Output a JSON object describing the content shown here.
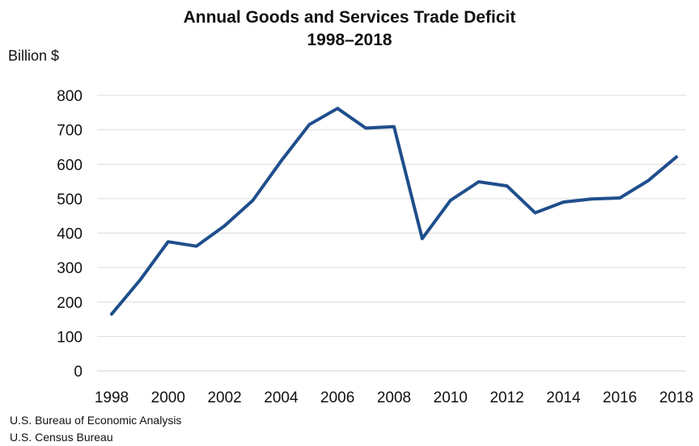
{
  "chart_data": {
    "type": "line",
    "title": "Annual Goods and Services Trade Deficit",
    "subtitle": "1998–2018",
    "ylabel": "Billion $",
    "xlabel": "",
    "ylim": [
      0,
      800
    ],
    "xlim": [
      1998,
      2018
    ],
    "y_ticks": [
      0,
      100,
      200,
      300,
      400,
      500,
      600,
      700,
      800
    ],
    "x_ticks": [
      1998,
      2000,
      2002,
      2004,
      2006,
      2008,
      2010,
      2012,
      2014,
      2016,
      2018
    ],
    "grid": "horizontal",
    "series": [
      {
        "color": "#1f4e8c",
        "x": [
          1998,
          1999,
          2000,
          2001,
          2002,
          2003,
          2004,
          2005,
          2006,
          2007,
          2008,
          2009,
          2010,
          2011,
          2012,
          2013,
          2014,
          2015,
          2016,
          2017,
          2018
        ],
        "y": [
          165,
          263,
          375,
          362,
          421,
          495,
          609,
          715,
          762,
          705,
          709,
          384,
          495,
          549,
          537,
          459,
          490,
          499,
          502,
          552,
          621
        ]
      }
    ]
  },
  "source_notes": [
    "U.S. Bureau of Economic Analysis",
    "U.S. Census Bureau"
  ]
}
